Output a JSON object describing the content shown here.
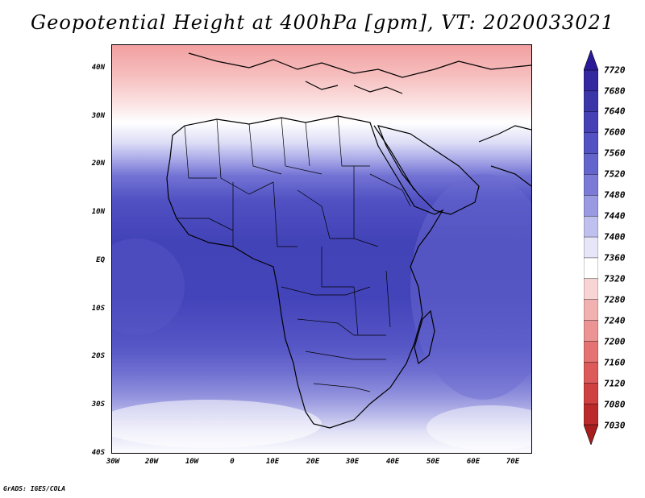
{
  "title": "Geopotential Height at 400hPa [gpm], VT: 2020033021",
  "credit": "GrADS: IGES/COLA",
  "map": {
    "projection": "latlon",
    "lon_range": [
      -30,
      75
    ],
    "lat_range": [
      -40,
      45
    ],
    "x_ticks": [
      "30W",
      "20W",
      "10W",
      "0",
      "10E",
      "20E",
      "30E",
      "40E",
      "50E",
      "60E",
      "70E"
    ],
    "y_ticks": [
      "40N",
      "30N",
      "20N",
      "10N",
      "EQ",
      "10S",
      "20S",
      "30S",
      "40S"
    ],
    "region": "Africa and surroundings"
  },
  "colorbar": {
    "levels": [
      "7720",
      "7680",
      "7640",
      "7600",
      "7560",
      "7520",
      "7480",
      "7440",
      "7400",
      "7360",
      "7320",
      "7280",
      "7240",
      "7200",
      "7160",
      "7120",
      "7080",
      "7030"
    ],
    "colors": [
      "#2a1a9a",
      "#33289f",
      "#3b36a8",
      "#4541b5",
      "#5252c2",
      "#6464cd",
      "#7b7bd7",
      "#9a9ae2",
      "#c0c0ef",
      "#e6e6f8",
      "#ffffff",
      "#f8d4d4",
      "#f2b1b1",
      "#ec9494",
      "#e57373",
      "#dc5a5a",
      "#cf4040",
      "#bb2a2a",
      "#a81e1e"
    ]
  }
}
